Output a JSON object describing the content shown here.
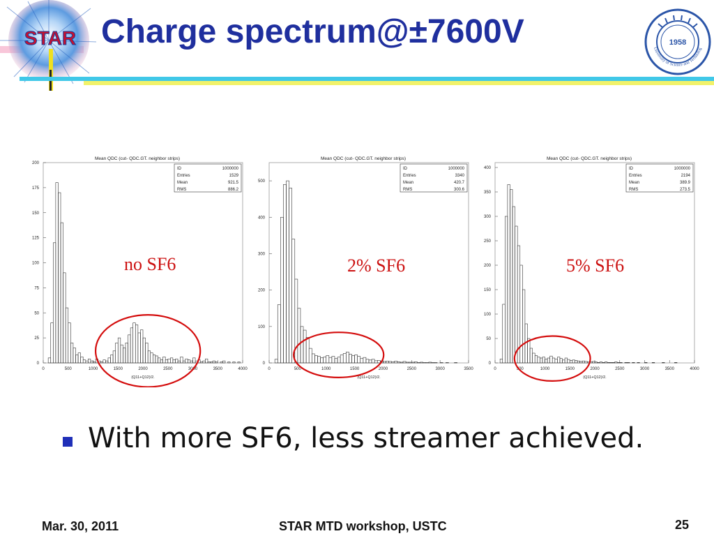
{
  "slide": {
    "title": "Charge spectrum@±7600V",
    "logo_left_text": "STAR",
    "logo_right_year": "1958",
    "logo_right_text": "University of Science and Technology of China",
    "bullet": "With more SF6, less streamer achieved.",
    "footer_left": "Mar. 30, 2011",
    "footer_center": "STAR MTD workshop, USTC",
    "page_number": "25",
    "colors": {
      "title": "#1f2f9e",
      "annotation": "#cc1111",
      "rule_blue": "#40c8e8",
      "rule_yellow": "#f2f26a"
    }
  },
  "chart_data": [
    {
      "type": "bar",
      "title": "Mean QDC (cut- QDC.GT. neighbor strips)",
      "xlabel": "(Q11+Q12)/2.",
      "annotation": "no SF6",
      "xlim": [
        0,
        4000
      ],
      "ylim": [
        0,
        200
      ],
      "xticks": [
        0,
        500,
        1000,
        1500,
        2000,
        2500,
        3000,
        3500,
        4000
      ],
      "yticks": [
        0,
        25,
        50,
        75,
        100,
        125,
        150,
        175,
        200
      ],
      "stats": [
        [
          "ID",
          "1000000"
        ],
        [
          "Entries",
          "1529"
        ],
        [
          "Mean",
          "921.5"
        ],
        [
          "RMS",
          "886.2"
        ]
      ],
      "bin_width": 50,
      "values": [
        0,
        0,
        5,
        40,
        120,
        180,
        170,
        140,
        90,
        55,
        40,
        20,
        15,
        8,
        10,
        6,
        3,
        2,
        4,
        2,
        1,
        4,
        2,
        1,
        3,
        2,
        5,
        8,
        12,
        20,
        25,
        18,
        15,
        20,
        28,
        35,
        40,
        38,
        30,
        33,
        25,
        20,
        12,
        10,
        8,
        7,
        5,
        3,
        6,
        3,
        4,
        5,
        3,
        4,
        2,
        6,
        2,
        4,
        3,
        2,
        5,
        2,
        3,
        1,
        2,
        4,
        1,
        1,
        2,
        1,
        0,
        1,
        2,
        0,
        1,
        0,
        1,
        0,
        1,
        0
      ],
      "circle": [
        2100,
        12,
        1050,
        36
      ]
    },
    {
      "type": "bar",
      "title": "Mean QDC (cut- QDC.GT. neighbor strips)",
      "xlabel": "(Q11+Q12)/2.",
      "annotation": "2% SF6",
      "xlim": [
        0,
        3500
      ],
      "ylim": [
        0,
        550
      ],
      "xticks": [
        0,
        500,
        1000,
        1500,
        2000,
        2500,
        3000,
        3500
      ],
      "yticks": [
        0,
        100,
        200,
        300,
        400,
        500
      ],
      "stats": [
        [
          "ID",
          "1000000"
        ],
        [
          "Entries",
          "3340"
        ],
        [
          "Mean",
          "420.7"
        ],
        [
          "RMS",
          "300.6"
        ]
      ],
      "bin_width": 50,
      "values": [
        0,
        0,
        10,
        160,
        400,
        490,
        500,
        480,
        340,
        230,
        150,
        100,
        90,
        70,
        40,
        25,
        20,
        18,
        14,
        16,
        20,
        15,
        18,
        12,
        16,
        22,
        26,
        30,
        24,
        20,
        22,
        18,
        12,
        15,
        10,
        8,
        10,
        6,
        7,
        5,
        4,
        5,
        4,
        3,
        5,
        3,
        2,
        4,
        2,
        2,
        2,
        3,
        1,
        2,
        1,
        1,
        2,
        1,
        1,
        0,
        1,
        0,
        1,
        0,
        0,
        1,
        0,
        0,
        0,
        0
      ],
      "circle": [
        1220,
        22,
        790,
        62
      ]
    },
    {
      "type": "bar",
      "title": "Mean QDC (cut- QDC.GT. neighbor strips)",
      "xlabel": "(Q11+Q12)/2.",
      "annotation": "5% SF6",
      "xlim": [
        0,
        4000
      ],
      "ylim": [
        0,
        410
      ],
      "xticks": [
        0,
        500,
        1000,
        1500,
        2000,
        2500,
        3000,
        3500,
        4000
      ],
      "yticks": [
        0,
        50,
        100,
        150,
        200,
        250,
        300,
        350,
        400
      ],
      "stats": [
        [
          "ID",
          "1000000"
        ],
        [
          "Entries",
          "2194"
        ],
        [
          "Mean",
          "389.9"
        ],
        [
          "RMS",
          "273.5"
        ]
      ],
      "bin_width": 50,
      "values": [
        0,
        0,
        8,
        120,
        300,
        365,
        355,
        320,
        280,
        240,
        200,
        150,
        80,
        50,
        30,
        20,
        15,
        12,
        10,
        12,
        8,
        10,
        14,
        10,
        8,
        12,
        9,
        6,
        10,
        7,
        5,
        6,
        5,
        4,
        3,
        4,
        3,
        2,
        2,
        3,
        2,
        1,
        2,
        1,
        2,
        1,
        1,
        1,
        2,
        1,
        1,
        0,
        1,
        1,
        0,
        1,
        0,
        1,
        0,
        0,
        1,
        0,
        0,
        1,
        0,
        0,
        0,
        1,
        0,
        0,
        0,
        0,
        1,
        0,
        0,
        0,
        0,
        0,
        0,
        0
      ],
      "circle": [
        1150,
        9,
        760,
        46
      ]
    }
  ]
}
